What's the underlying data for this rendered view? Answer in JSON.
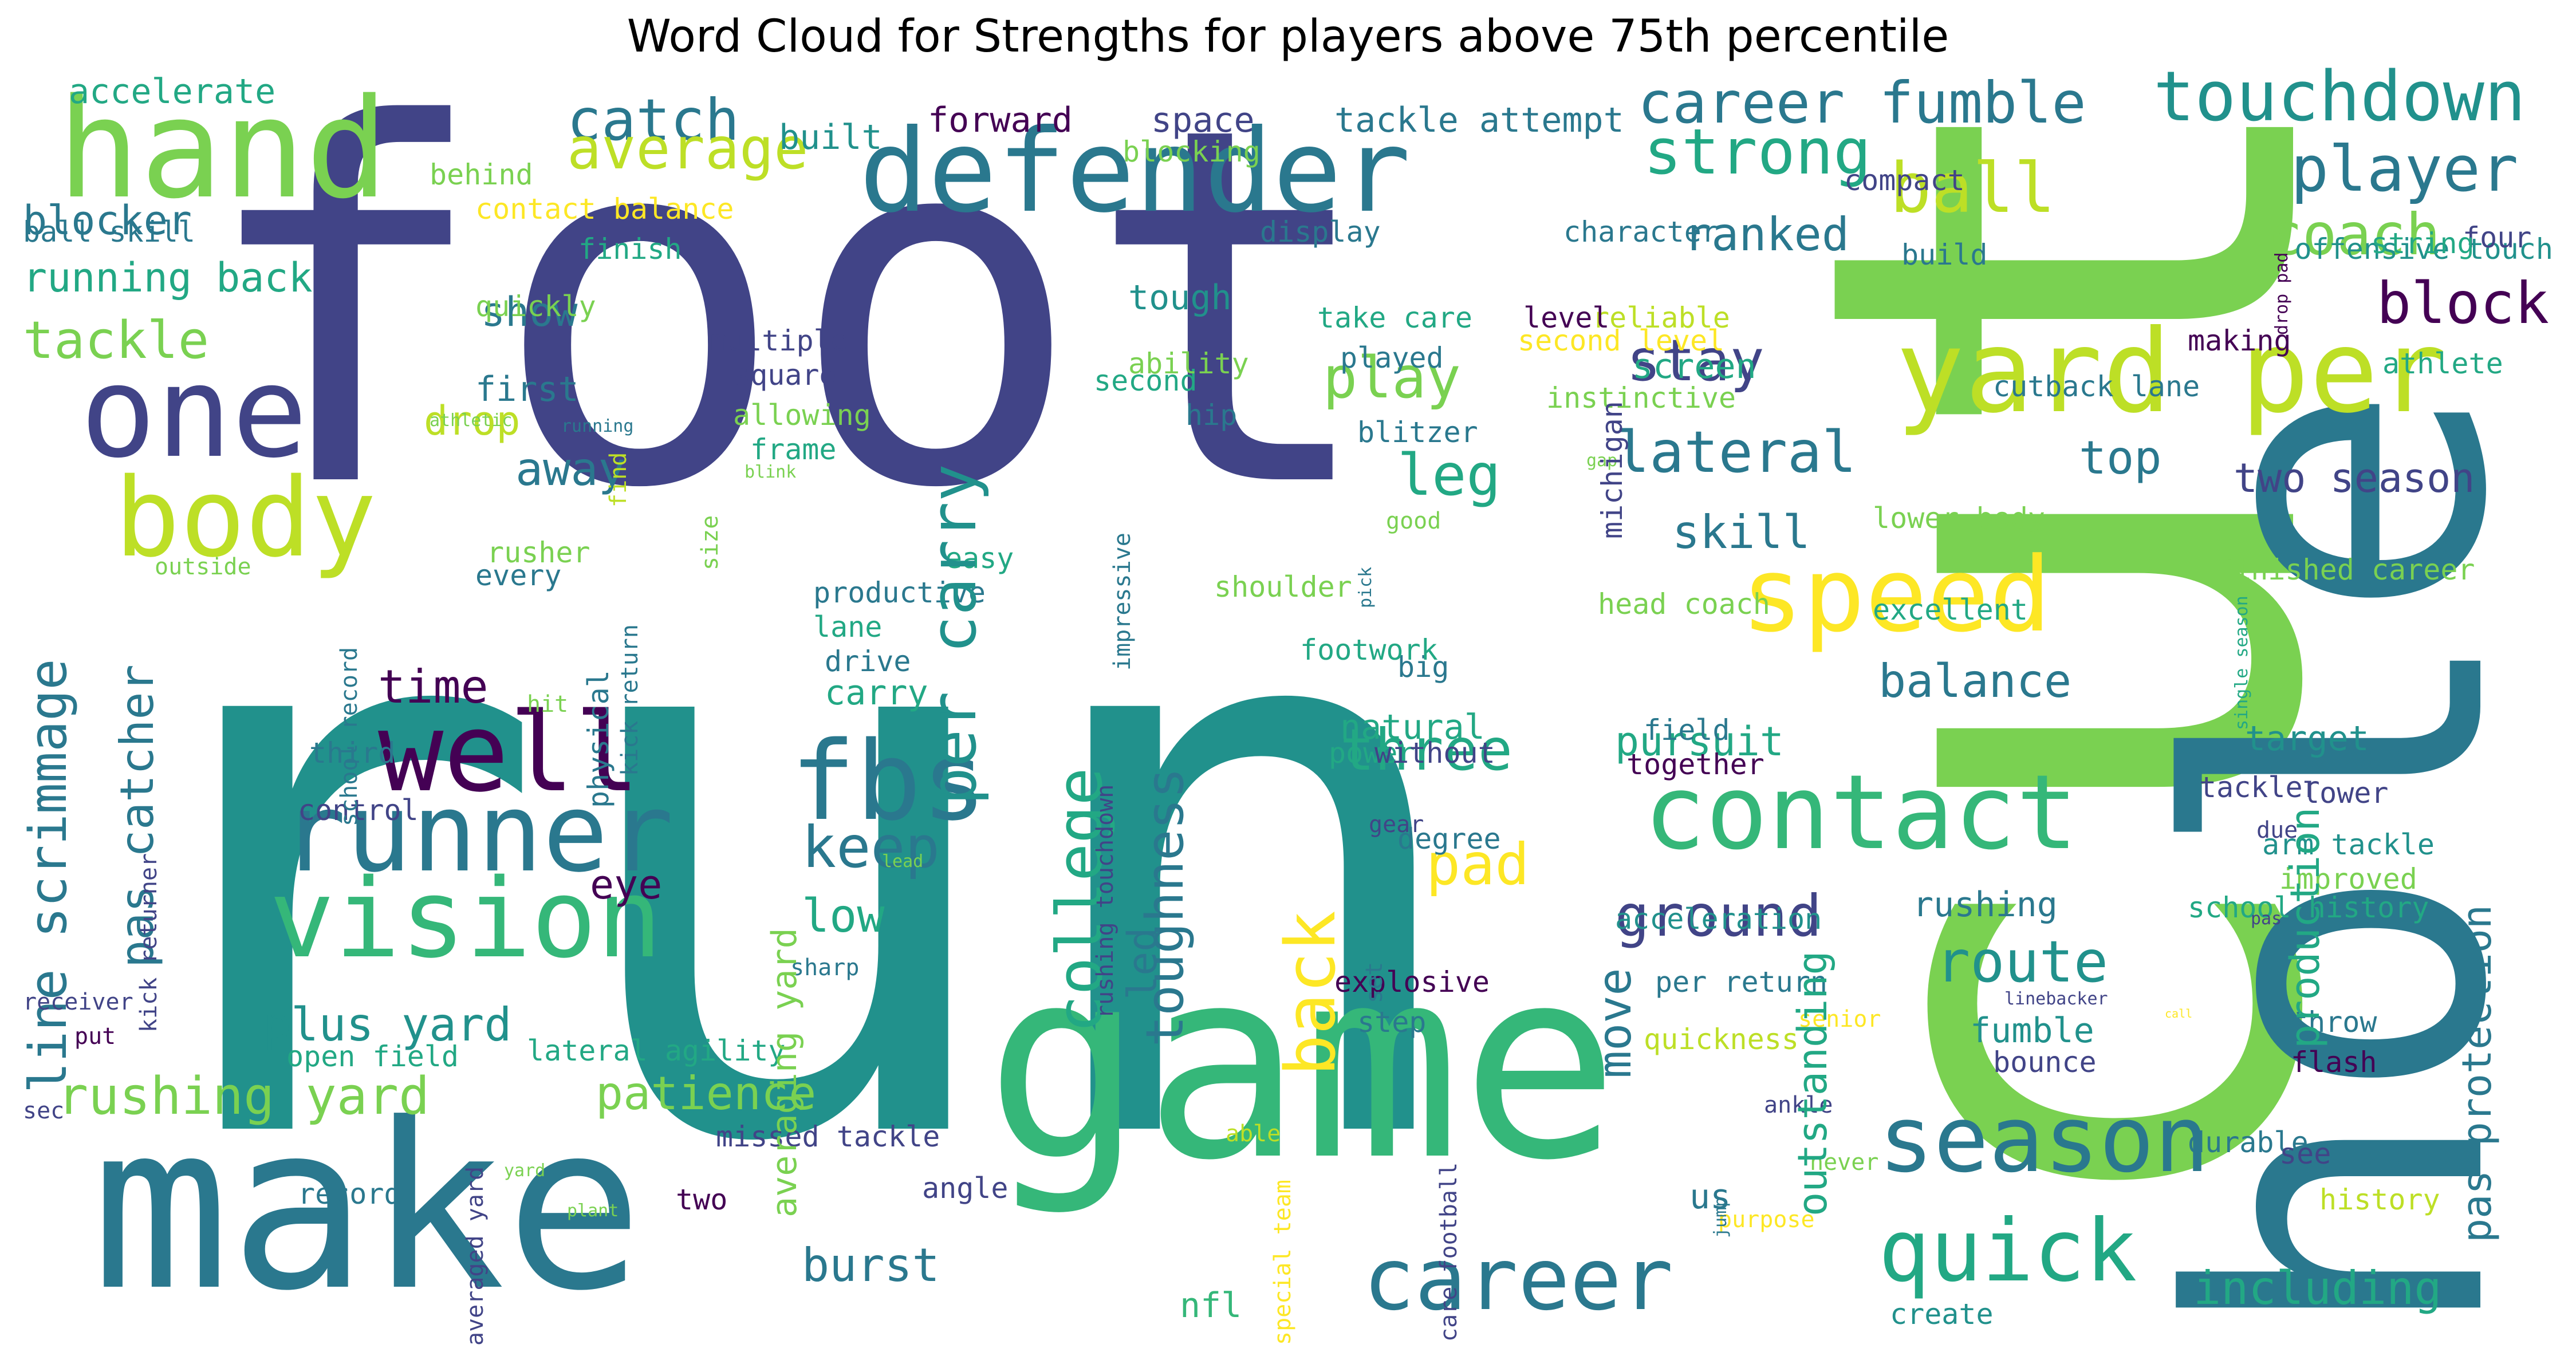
{
  "title": "Word Cloud for Strengths for players above 75th percentile",
  "words": [
    {
      "text": "foot",
      "color": "#414487"
    },
    {
      "text": "run",
      "color": "#21918c"
    },
    {
      "text": "cut",
      "color": "#7ad151"
    },
    {
      "text": "hole",
      "color": "#2a788e"
    },
    {
      "text": "game",
      "color": "#35b779"
    },
    {
      "text": "make",
      "color": "#2a788e"
    },
    {
      "text": "defender",
      "color": "#2a788e"
    },
    {
      "text": "yard per",
      "color": "#bddf26"
    },
    {
      "text": "hand",
      "color": "#7ad151"
    },
    {
      "text": "one",
      "color": "#414487"
    },
    {
      "text": "body",
      "color": "#bddf26"
    },
    {
      "text": "vision",
      "color": "#35b779"
    },
    {
      "text": "runner",
      "color": "#2a788e"
    },
    {
      "text": "well",
      "color": "#440154"
    },
    {
      "text": "fbs",
      "color": "#2a788e"
    },
    {
      "text": "contact",
      "color": "#35b779"
    },
    {
      "text": "speed",
      "color": "#fde725"
    },
    {
      "text": "season",
      "color": "#2a788e"
    },
    {
      "text": "quick",
      "color": "#22a884"
    },
    {
      "text": "career",
      "color": "#2a788e"
    },
    {
      "text": "touchdown",
      "color": "#21918c"
    },
    {
      "text": "player",
      "color": "#2a788e"
    },
    {
      "text": "catch",
      "color": "#2a788e"
    },
    {
      "text": "average",
      "color": "#bddf26"
    },
    {
      "text": "career fumble",
      "color": "#2a788e"
    },
    {
      "text": "strong",
      "color": "#22a884"
    },
    {
      "text": "ball",
      "color": "#bddf26"
    },
    {
      "text": "coach",
      "color": "#7ad151"
    },
    {
      "text": "ranked",
      "color": "#2a788e"
    },
    {
      "text": "block",
      "color": "#440154"
    },
    {
      "text": "stay",
      "color": "#414487"
    },
    {
      "text": "lateral",
      "color": "#2a788e"
    },
    {
      "text": "play",
      "color": "#7ad151"
    },
    {
      "text": "leg",
      "color": "#22a884"
    },
    {
      "text": "skill",
      "color": "#2a788e"
    },
    {
      "text": "three",
      "color": "#22a884"
    },
    {
      "text": "ground",
      "color": "#414487"
    },
    {
      "text": "route",
      "color": "#21918c"
    },
    {
      "text": "balance",
      "color": "#2a788e"
    },
    {
      "text": "pursuit",
      "color": "#22a884"
    },
    {
      "text": "pad",
      "color": "#fde725"
    },
    {
      "text": "keep",
      "color": "#2a788e"
    },
    {
      "text": "low",
      "color": "#22a884"
    },
    {
      "text": "time",
      "color": "#440154"
    },
    {
      "text": "plus yard",
      "color": "#21918c"
    },
    {
      "text": "rushing yard",
      "color": "#7ad151"
    },
    {
      "text": "patience",
      "color": "#7ad151"
    },
    {
      "text": "burst",
      "color": "#2a788e"
    },
    {
      "text": "nfl",
      "color": "#35b779"
    },
    {
      "text": "including",
      "color": "#22a884"
    },
    {
      "text": "tackle",
      "color": "#7ad151"
    },
    {
      "text": "running back",
      "color": "#22a884"
    },
    {
      "text": "blocker",
      "color": "#2a788e"
    },
    {
      "text": "accelerate",
      "color": "#22a884"
    },
    {
      "text": "show",
      "color": "#2a788e"
    },
    {
      "text": "away",
      "color": "#2a788e"
    },
    {
      "text": "drop",
      "color": "#bddf26"
    },
    {
      "text": "two season",
      "color": "#414487"
    },
    {
      "text": "top",
      "color": "#2a788e"
    },
    {
      "text": "athlete",
      "color": "#22a884"
    },
    {
      "text": "offensive touch",
      "color": "#21918c"
    },
    {
      "text": "four",
      "color": "#414487"
    },
    {
      "text": "tough",
      "color": "#21918c"
    },
    {
      "text": "second",
      "color": "#22a884"
    },
    {
      "text": "multiple",
      "color": "#414487"
    },
    {
      "text": "square",
      "color": "#414487"
    },
    {
      "text": "allowing",
      "color": "#7ad151"
    },
    {
      "text": "frame",
      "color": "#22a884"
    },
    {
      "text": "built",
      "color": "#21918c"
    },
    {
      "text": "forward",
      "color": "#440154"
    },
    {
      "text": "space",
      "color": "#414487"
    },
    {
      "text": "tackle attempt",
      "color": "#2a788e"
    },
    {
      "text": "blocking",
      "color": "#7ad151"
    },
    {
      "text": "behind",
      "color": "#7ad151"
    },
    {
      "text": "contact balance",
      "color": "#fde725"
    },
    {
      "text": "finish",
      "color": "#22a884"
    },
    {
      "text": "ball skill",
      "color": "#2a788e"
    },
    {
      "text": "quickly",
      "color": "#7ad151"
    },
    {
      "text": "first",
      "color": "#2a788e"
    },
    {
      "text": "display",
      "color": "#2a788e"
    },
    {
      "text": "take care",
      "color": "#22a884"
    },
    {
      "text": "played",
      "color": "#2a788e"
    },
    {
      "text": "reliable",
      "color": "#bddf26"
    },
    {
      "text": "level",
      "color": "#440154"
    },
    {
      "text": "second level",
      "color": "#fde725"
    },
    {
      "text": "instinctive",
      "color": "#7ad151"
    },
    {
      "text": "screen",
      "color": "#22a884"
    },
    {
      "text": "character",
      "color": "#2a788e"
    },
    {
      "text": "compact",
      "color": "#414487"
    },
    {
      "text": "build",
      "color": "#2a788e"
    },
    {
      "text": "string",
      "color": "#22a884"
    },
    {
      "text": "making",
      "color": "#440154"
    },
    {
      "text": "cutback lane",
      "color": "#2a788e"
    },
    {
      "text": "lower body",
      "color": "#7ad151"
    },
    {
      "text": "finished career",
      "color": "#7ad151"
    },
    {
      "text": "excellent",
      "color": "#22a884"
    },
    {
      "text": "head coach",
      "color": "#7ad151"
    },
    {
      "text": "field",
      "color": "#2a788e"
    },
    {
      "text": "together",
      "color": "#440154"
    },
    {
      "text": "target",
      "color": "#21918c"
    },
    {
      "text": "tackler",
      "color": "#414487"
    },
    {
      "text": "lower",
      "color": "#414487"
    },
    {
      "text": "arm tackle",
      "color": "#21918c"
    },
    {
      "text": "improved",
      "color": "#7ad151"
    },
    {
      "text": "school history",
      "color": "#22a884"
    },
    {
      "text": "acceleration",
      "color": "#21918c"
    },
    {
      "text": "rushing",
      "color": "#2a788e"
    },
    {
      "text": "per return",
      "color": "#2a788e"
    },
    {
      "text": "fumble",
      "color": "#21918c"
    },
    {
      "text": "bounce",
      "color": "#414487"
    },
    {
      "text": "throw",
      "color": "#2a788e"
    },
    {
      "text": "flash",
      "color": "#440154"
    },
    {
      "text": "durable",
      "color": "#2a788e"
    },
    {
      "text": "see",
      "color": "#414487"
    },
    {
      "text": "history",
      "color": "#bddf26"
    },
    {
      "text": "quickness",
      "color": "#bddf26"
    },
    {
      "text": "create",
      "color": "#21918c"
    },
    {
      "text": "explosive",
      "color": "#440154"
    },
    {
      "text": "step",
      "color": "#2a788e"
    },
    {
      "text": "natural",
      "color": "#22a884"
    },
    {
      "text": "power",
      "color": "#22a884"
    },
    {
      "text": "big",
      "color": "#2a788e"
    },
    {
      "text": "degree",
      "color": "#2a788e"
    },
    {
      "text": "gear",
      "color": "#414487"
    },
    {
      "text": "without",
      "color": "#414487"
    },
    {
      "text": "good",
      "color": "#7ad151"
    },
    {
      "text": "shoulder",
      "color": "#7ad151"
    },
    {
      "text": "footwork",
      "color": "#22a884"
    },
    {
      "text": "blitzer",
      "color": "#2a788e"
    },
    {
      "text": "hip",
      "color": "#2a788e"
    },
    {
      "text": "ability",
      "color": "#7ad151"
    },
    {
      "text": "productive",
      "color": "#2a788e"
    },
    {
      "text": "lane",
      "color": "#22a884"
    },
    {
      "text": "drive",
      "color": "#2a788e"
    },
    {
      "text": "carry",
      "color": "#22a884"
    },
    {
      "text": "easy",
      "color": "#22a884"
    },
    {
      "text": "third",
      "color": "#2a788e"
    },
    {
      "text": "control",
      "color": "#414487"
    },
    {
      "text": "hit",
      "color": "#7ad151"
    },
    {
      "text": "line scrimmage",
      "color": "#2a788e"
    },
    {
      "text": "pas catcher",
      "color": "#2a788e"
    },
    {
      "text": "rusher",
      "color": "#7ad151"
    },
    {
      "text": "every",
      "color": "#2a788e"
    },
    {
      "text": "outside",
      "color": "#7ad151"
    },
    {
      "text": "athletic",
      "color": "#7ad151"
    },
    {
      "text": "running",
      "color": "#2a788e"
    },
    {
      "text": "blink",
      "color": "#7ad151"
    },
    {
      "text": "receiver",
      "color": "#414487"
    },
    {
      "text": "put",
      "color": "#440154"
    },
    {
      "text": "sec",
      "color": "#414487"
    },
    {
      "text": "open field",
      "color": "#22a884"
    },
    {
      "text": "lateral agility",
      "color": "#22a884"
    },
    {
      "text": "missed tackle",
      "color": "#414487"
    },
    {
      "text": "angle",
      "color": "#414487"
    },
    {
      "text": "two",
      "color": "#440154"
    },
    {
      "text": "record",
      "color": "#2a788e"
    },
    {
      "text": "sharp",
      "color": "#2a788e"
    },
    {
      "text": "yard",
      "color": "#7ad151"
    },
    {
      "text": "able",
      "color": "#bddf26"
    },
    {
      "text": "us",
      "color": "#2a788e"
    },
    {
      "text": "purpose",
      "color": "#fde725"
    },
    {
      "text": "ankle",
      "color": "#414487"
    },
    {
      "text": "never",
      "color": "#7ad151"
    },
    {
      "text": "senior",
      "color": "#fde725"
    },
    {
      "text": "linebacker",
      "color": "#414487"
    },
    {
      "text": "due",
      "color": "#414487"
    },
    {
      "text": "pas",
      "color": "#414487"
    },
    {
      "text": "call",
      "color": "#fde725"
    },
    {
      "text": "lead",
      "color": "#7ad151"
    },
    {
      "text": "plant",
      "color": "#7ad151"
    },
    {
      "text": "jump",
      "color": "#2a788e"
    },
    {
      "text": "gap",
      "color": "#7ad151"
    },
    {
      "text": "per carry",
      "color": "#21918c"
    },
    {
      "text": "college",
      "color": "#22a884"
    },
    {
      "text": "back",
      "color": "#fde725"
    },
    {
      "text": "toughness",
      "color": "#2a788e"
    },
    {
      "text": "led",
      "color": "#2a788e"
    },
    {
      "text": "eye",
      "color": "#440154"
    },
    {
      "text": "move",
      "color": "#2a788e"
    },
    {
      "text": "outstanding",
      "color": "#22a884"
    },
    {
      "text": "production",
      "color": "#22a884"
    },
    {
      "text": "pas protection",
      "color": "#2a788e"
    },
    {
      "text": "averaging yard",
      "color": "#7ad151"
    },
    {
      "text": "set",
      "color": "#2a788e"
    },
    {
      "text": "physical",
      "color": "#2a788e"
    },
    {
      "text": "kick return",
      "color": "#2a788e"
    },
    {
      "text": "school record",
      "color": "#2a788e"
    },
    {
      "text": "find",
      "color": "#bddf26"
    },
    {
      "text": "size",
      "color": "#7ad151"
    },
    {
      "text": "impressive",
      "color": "#2a788e"
    },
    {
      "text": "rushing touchdown",
      "color": "#414487"
    },
    {
      "text": "kick returner",
      "color": "#414487"
    },
    {
      "text": "averaged yard",
      "color": "#414487"
    },
    {
      "text": "special team",
      "color": "#fde725"
    },
    {
      "text": "care football",
      "color": "#414487"
    },
    {
      "text": "pick",
      "color": "#2a788e"
    },
    {
      "text": "michigan",
      "color": "#414487"
    },
    {
      "text": "drop pad",
      "color": "#440154"
    },
    {
      "text": "single season",
      "color": "#22a884"
    }
  ]
}
